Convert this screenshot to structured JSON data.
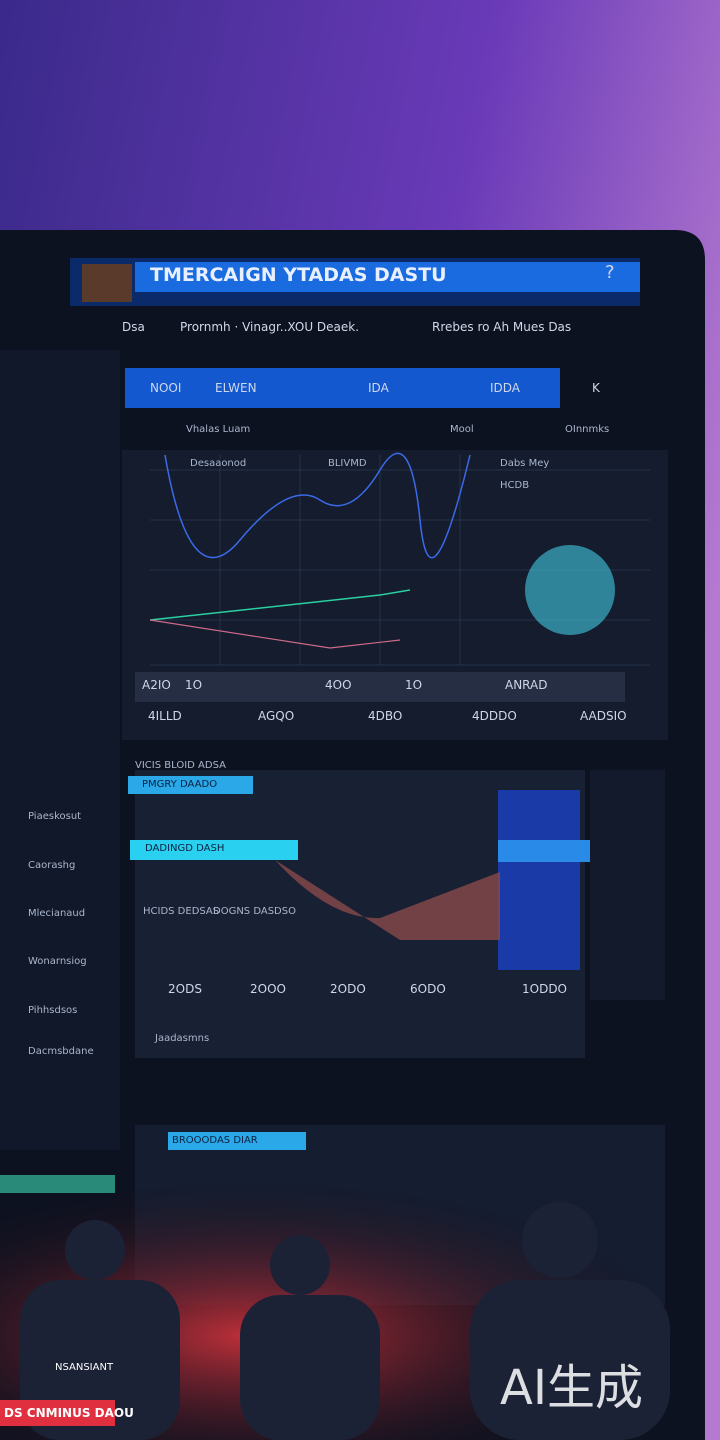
{
  "header": {
    "title": "TMERCAIGN YTADAS DASTU",
    "icon": "?"
  },
  "nav": [
    "Dsa",
    "Prornmh · Vinagr..XOU Deaek.",
    "Rrebes ro Ah Mues Das"
  ],
  "tabs": [
    "NOOI",
    "ELWEN",
    "IDA",
    "IDDA",
    "K"
  ],
  "filters": [
    "Vhalas Luam",
    "Mool",
    "OInnmks"
  ],
  "chart1": {
    "labels": [
      "Desaaonod",
      "BLIVMD",
      "Dabs Mey",
      "HCDB"
    ],
    "axis": [
      "A2IO",
      "1O",
      "4OO",
      "1O",
      "ANRAD"
    ],
    "footer": [
      "4ILLD",
      "AGQO",
      "4DBO",
      "4DDDO",
      "AADSIO"
    ]
  },
  "chart2": {
    "title": "VICIS BLOID ADSA",
    "bars": [
      "DADINGD DASH",
      "PMGRY DAADO"
    ],
    "notes": [
      "HCIDS DEDSAS",
      "DOGNS DASDSO"
    ],
    "axis": [
      "2ODS",
      "2OOO",
      "2ODO",
      "6ODO",
      "1ODDO"
    ],
    "footer": "Jaadasmns"
  },
  "sidebar": [
    "Piaeskosut",
    "Caorashg",
    "Mlecianaud",
    "Wonarnsiog",
    "Pihhsdsos",
    "Dacmsbdane"
  ],
  "bottom": {
    "title": "BROOODAS DIAR",
    "label": "NSANSIANT",
    "banner": "DS CNMINUS DAOU"
  },
  "watermark": "AI生成"
}
